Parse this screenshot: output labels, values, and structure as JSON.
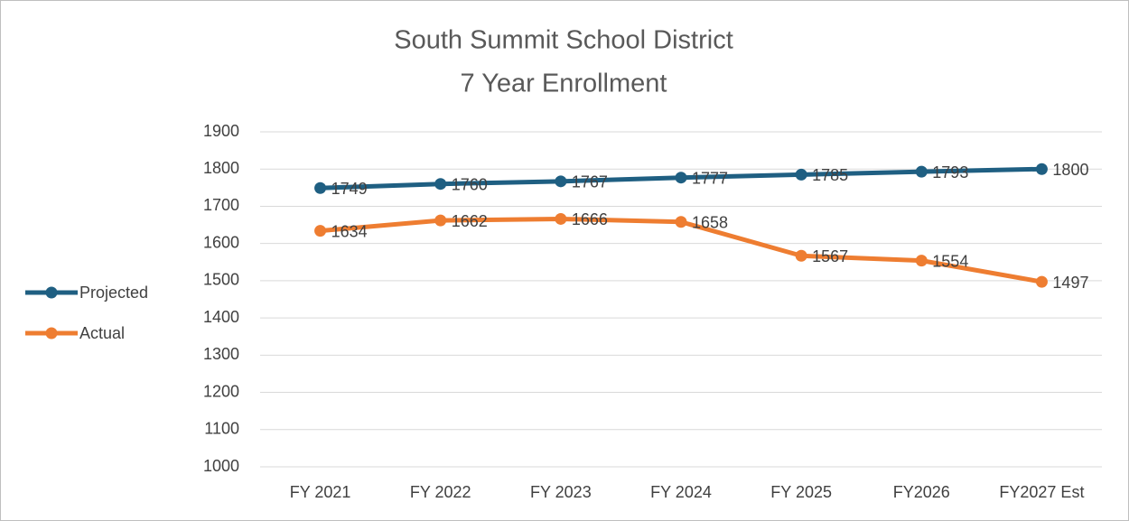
{
  "chart_data": {
    "type": "line",
    "title": "South Summit School District",
    "subtitle": "7 Year Enrollment",
    "categories": [
      "FY 2021",
      "FY 2022",
      "FY 2023",
      "FY 2024",
      "FY 2025",
      "FY2026",
      "FY2027 Est"
    ],
    "series": [
      {
        "name": "Projected",
        "color": "#1f5f82",
        "values": [
          1749,
          1760,
          1767,
          1777,
          1785,
          1793,
          1800
        ]
      },
      {
        "name": "Actual",
        "color": "#ee7d31",
        "values": [
          1634,
          1662,
          1666,
          1658,
          1567,
          1554,
          1497
        ]
      }
    ],
    "ylim": [
      1000,
      1900
    ],
    "yticks": [
      1000,
      1100,
      1200,
      1300,
      1400,
      1500,
      1600,
      1700,
      1800,
      1900
    ],
    "grid": true,
    "legend": "left",
    "data_labels": true
  }
}
